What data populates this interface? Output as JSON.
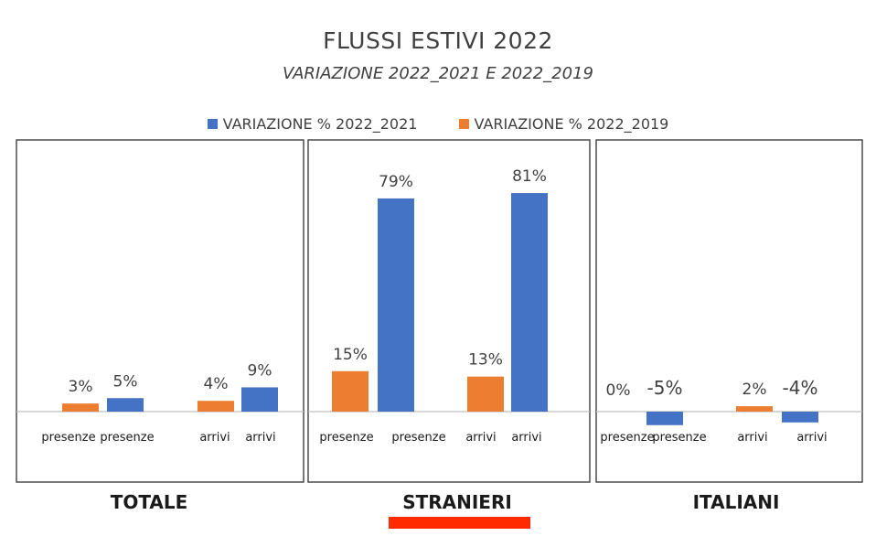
{
  "title": "FLUSSI ESTIVI 2022",
  "subtitle": "VARIAZIONE 2022_2021 E 2022_2019",
  "colors": {
    "series_2021": "#4472c4",
    "series_2019": "#ed7d31",
    "highlight": "#ff2a00"
  },
  "chart_data": [
    {
      "type": "bar",
      "panel": "TOTALE",
      "categories": [
        "presenze",
        "arrivi"
      ],
      "series": [
        {
          "name": "VARIAZIONE % 2022_2019",
          "values": [
            3,
            4
          ]
        },
        {
          "name": "VARIAZIONE % 2022_2021",
          "values": [
            5,
            9
          ]
        }
      ],
      "data_labels": [
        [
          "3%",
          "4%"
        ],
        [
          "5%",
          "9%"
        ]
      ],
      "ylim": [
        -10,
        90
      ],
      "legend": "top-center"
    },
    {
      "type": "bar",
      "panel": "STRANIERI",
      "categories": [
        "presenze",
        "arrivi"
      ],
      "series": [
        {
          "name": "VARIAZIONE % 2022_2019",
          "values": [
            15,
            13
          ]
        },
        {
          "name": "VARIAZIONE % 2022_2021",
          "values": [
            79,
            81
          ]
        }
      ],
      "data_labels": [
        [
          "15%",
          "13%"
        ],
        [
          "79%",
          "81%"
        ]
      ],
      "ylim": [
        -10,
        90
      ],
      "legend": "top-center"
    },
    {
      "type": "bar",
      "panel": "ITALIANI",
      "categories": [
        "presenze",
        "arrivi"
      ],
      "series": [
        {
          "name": "VARIAZIONE % 2022_2019",
          "values": [
            0,
            2
          ]
        },
        {
          "name": "VARIAZIONE % 2022_2021",
          "values": [
            -5,
            -4
          ]
        }
      ],
      "data_labels": [
        [
          "0%",
          "2%"
        ],
        [
          "-5%",
          "-4%"
        ]
      ],
      "ylim": [
        -10,
        90
      ],
      "legend": "top-center"
    }
  ]
}
